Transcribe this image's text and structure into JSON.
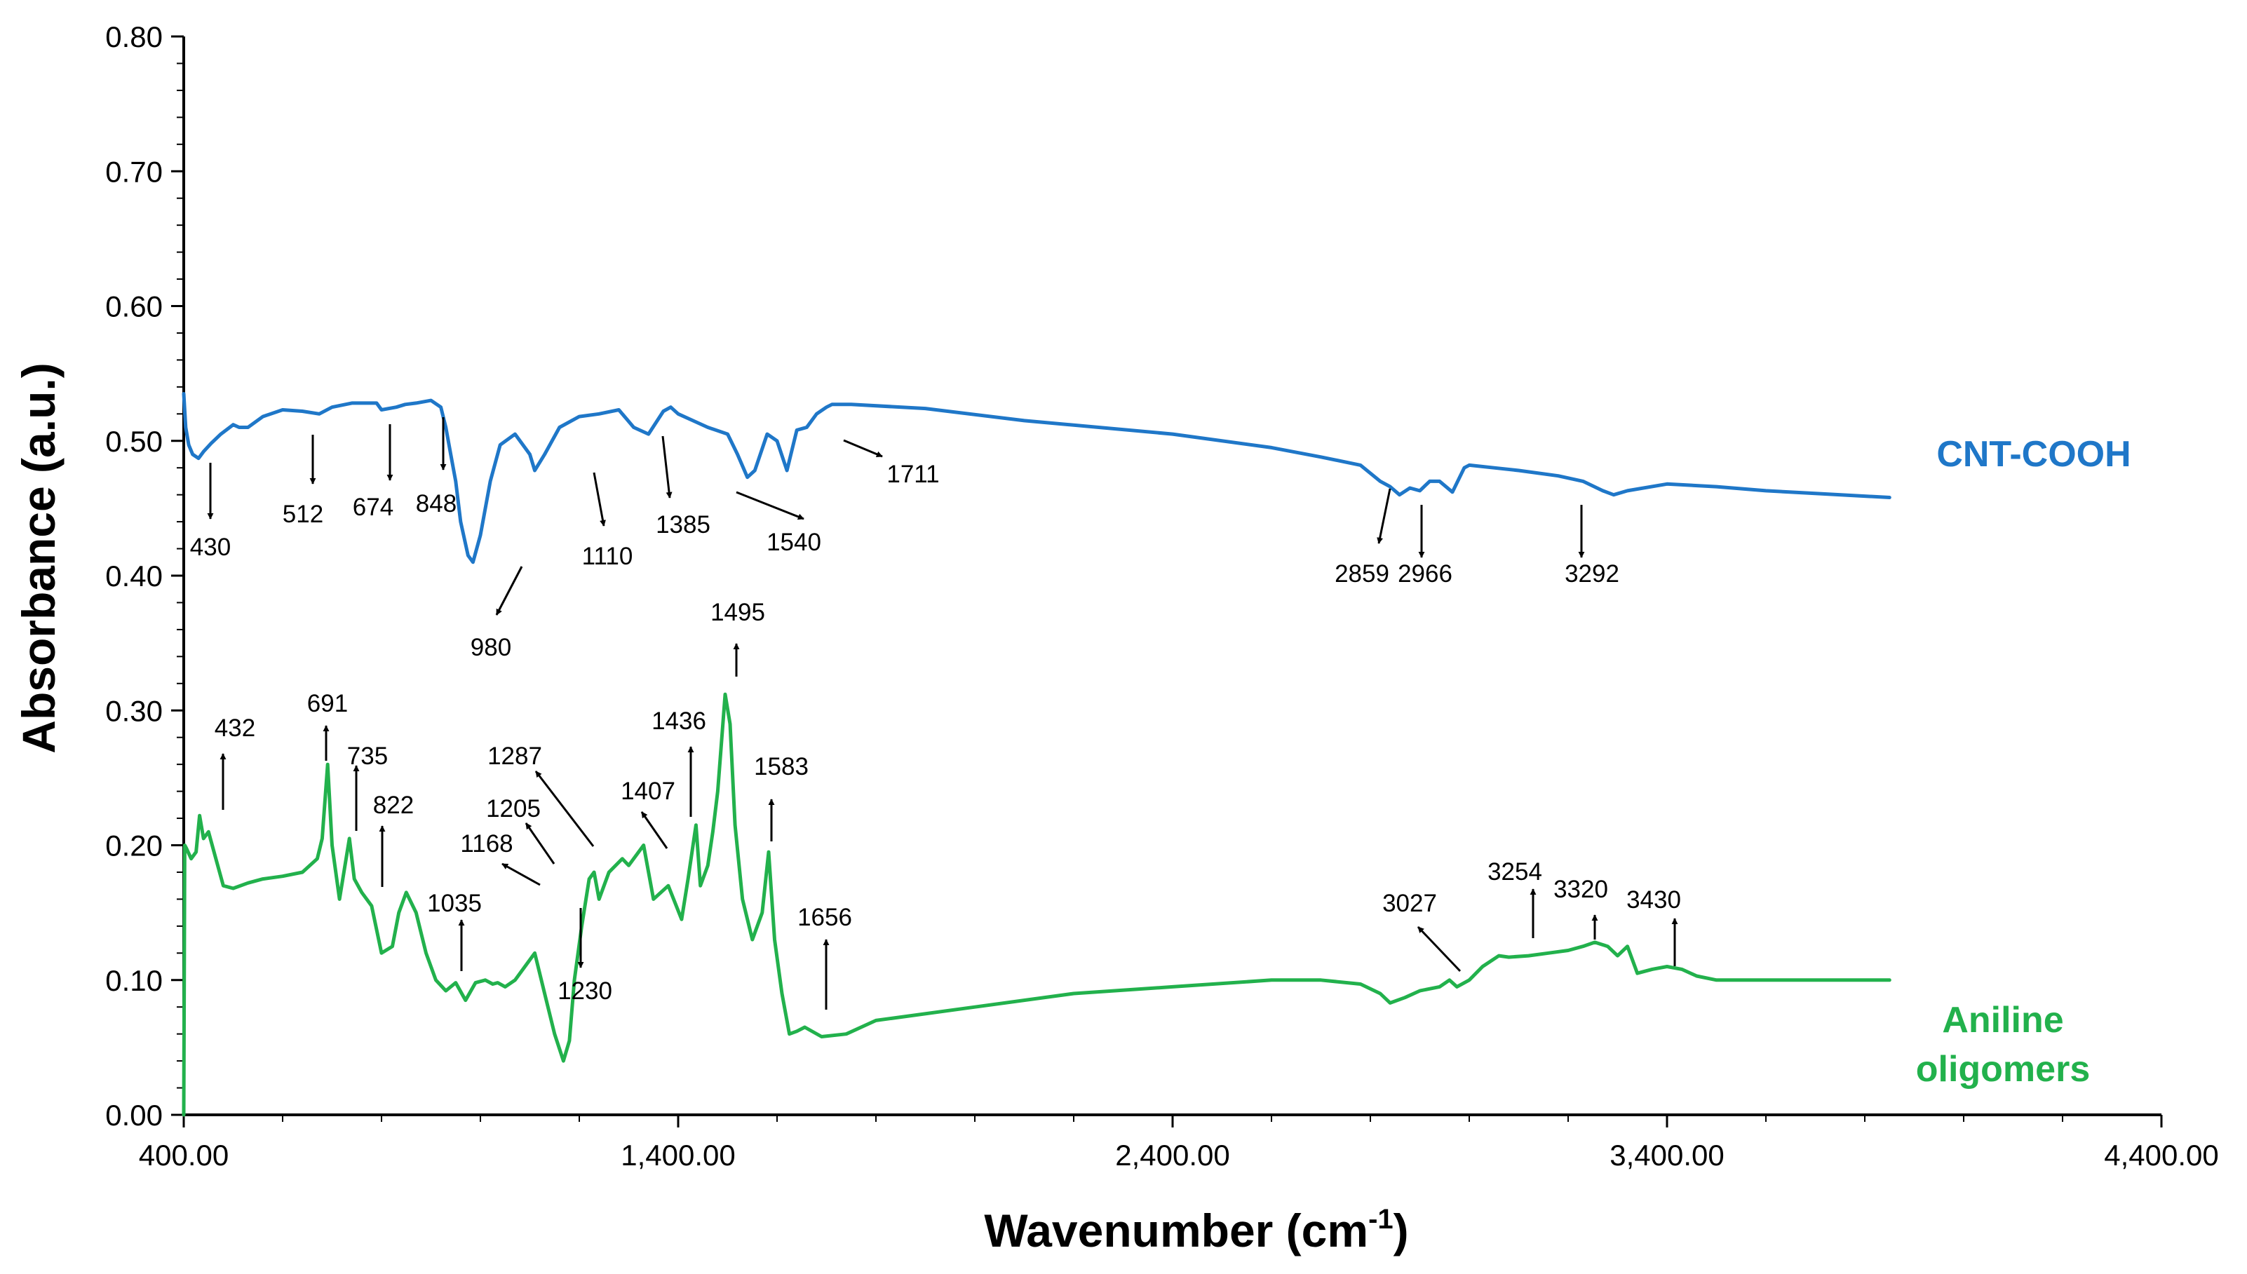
{
  "chart_data": {
    "type": "line",
    "title": "",
    "xlabel": "Wavenumber (cm",
    "xlabel_sup": "-1",
    "xlabel_close": ")",
    "ylabel": "Absorbance (a.u.)",
    "xlim": [
      400,
      4400
    ],
    "ylim": [
      0,
      0.8
    ],
    "x_ticks": [
      400,
      1400,
      2400,
      3400,
      4400
    ],
    "x_tick_labels": [
      "400.00",
      "1,400.00",
      "2,400.00",
      "3,400.00",
      "4,400.00"
    ],
    "y_ticks": [
      0,
      0.1,
      0.2,
      0.3,
      0.4,
      0.5,
      0.6,
      0.7,
      0.8
    ],
    "y_tick_labels": [
      "0.00",
      "0.10",
      "0.20",
      "0.30",
      "0.40",
      "0.50",
      "0.60",
      "0.70",
      "0.80"
    ],
    "grid": false,
    "series": [
      {
        "name": "CNT-COOH",
        "label_lines": [
          "CNT-COOH"
        ],
        "color": "#1f77c8",
        "x": [
          400,
          404,
          410,
          418,
          430,
          440,
          455,
          475,
          500,
          512,
          530,
          560,
          600,
          640,
          674,
          700,
          740,
          790,
          800,
          830,
          848,
          870,
          900,
          920,
          930,
          940,
          950,
          960,
          975,
          985,
          1000,
          1020,
          1040,
          1070,
          1100,
          1110,
          1130,
          1160,
          1200,
          1240,
          1280,
          1310,
          1340,
          1370,
          1385,
          1400,
          1430,
          1460,
          1500,
          1520,
          1540,
          1555,
          1580,
          1600,
          1620,
          1640,
          1660,
          1680,
          1700,
          1711,
          1750,
          1900,
          2100,
          2400,
          2600,
          2700,
          2780,
          2820,
          2840,
          2859,
          2880,
          2900,
          2920,
          2940,
          2966,
          2990,
          3000,
          3050,
          3100,
          3180,
          3230,
          3270,
          3292,
          3320,
          3400,
          3500,
          3600,
          3700,
          3800,
          3850
        ],
        "values": [
          0.535,
          0.51,
          0.497,
          0.49,
          0.487,
          0.492,
          0.498,
          0.505,
          0.512,
          0.51,
          0.51,
          0.518,
          0.523,
          0.522,
          0.52,
          0.525,
          0.528,
          0.528,
          0.523,
          0.525,
          0.527,
          0.528,
          0.53,
          0.525,
          0.51,
          0.49,
          0.47,
          0.44,
          0.415,
          0.41,
          0.43,
          0.47,
          0.497,
          0.505,
          0.49,
          0.478,
          0.49,
          0.51,
          0.518,
          0.52,
          0.523,
          0.51,
          0.505,
          0.522,
          0.525,
          0.52,
          0.515,
          0.51,
          0.505,
          0.49,
          0.473,
          0.478,
          0.505,
          0.5,
          0.478,
          0.508,
          0.51,
          0.52,
          0.525,
          0.527,
          0.527,
          0.524,
          0.515,
          0.505,
          0.495,
          0.488,
          0.482,
          0.47,
          0.466,
          0.46,
          0.465,
          0.463,
          0.47,
          0.47,
          0.462,
          0.48,
          0.482,
          0.48,
          0.478,
          0.474,
          0.47,
          0.463,
          0.46,
          0.463,
          0.468,
          0.466,
          0.463,
          0.461,
          0.459,
          0.458
        ],
        "annotations": [
          {
            "label": "430",
            "peak_x": 430
          },
          {
            "label": "512",
            "peak_x": 512
          },
          {
            "label": "674",
            "peak_x": 674
          },
          {
            "label": "848",
            "peak_x": 848
          },
          {
            "label": "980",
            "peak_x": 980
          },
          {
            "label": "1110",
            "peak_x": 1110
          },
          {
            "label": "1385",
            "peak_x": 1385
          },
          {
            "label": "1540",
            "peak_x": 1540
          },
          {
            "label": "1711",
            "peak_x": 1711
          },
          {
            "label": "2859",
            "peak_x": 2859
          },
          {
            "label": "2966",
            "peak_x": 2966
          },
          {
            "label": "3292",
            "peak_x": 3292
          }
        ]
      },
      {
        "name": "Aniline oligomers",
        "label_lines": [
          "Aniline",
          "oligomers"
        ],
        "color": "#22b14c",
        "x": [
          400,
          402,
          405,
          415,
          425,
          432,
          440,
          450,
          465,
          480,
          500,
          530,
          560,
          600,
          640,
          670,
          680,
          691,
          700,
          715,
          735,
          745,
          760,
          780,
          800,
          822,
          835,
          850,
          870,
          890,
          910,
          930,
          950,
          970,
          990,
          1010,
          1025,
          1035,
          1050,
          1070,
          1090,
          1110,
          1130,
          1150,
          1168,
          1180,
          1190,
          1205,
          1220,
          1230,
          1240,
          1260,
          1287,
          1300,
          1330,
          1350,
          1380,
          1407,
          1420,
          1436,
          1445,
          1460,
          1470,
          1480,
          1495,
          1505,
          1515,
          1530,
          1550,
          1570,
          1583,
          1595,
          1610,
          1625,
          1640,
          1656,
          1690,
          1740,
          1800,
          2000,
          2200,
          2400,
          2600,
          2700,
          2780,
          2820,
          2840,
          2870,
          2900,
          2940,
          2960,
          2975,
          3000,
          3027,
          3060,
          3080,
          3120,
          3160,
          3200,
          3230,
          3254,
          3280,
          3300,
          3320,
          3340,
          3370,
          3400,
          3430,
          3460,
          3500,
          3600,
          3700,
          3800,
          3850
        ],
        "values": [
          0.0,
          0.2,
          0.198,
          0.19,
          0.195,
          0.222,
          0.205,
          0.21,
          0.19,
          0.17,
          0.168,
          0.172,
          0.175,
          0.177,
          0.18,
          0.19,
          0.205,
          0.26,
          0.2,
          0.16,
          0.205,
          0.175,
          0.165,
          0.155,
          0.12,
          0.125,
          0.15,
          0.165,
          0.15,
          0.12,
          0.1,
          0.092,
          0.098,
          0.085,
          0.098,
          0.1,
          0.097,
          0.098,
          0.095,
          0.1,
          0.11,
          0.12,
          0.09,
          0.06,
          0.04,
          0.055,
          0.1,
          0.14,
          0.175,
          0.18,
          0.16,
          0.18,
          0.19,
          0.185,
          0.2,
          0.16,
          0.17,
          0.145,
          0.175,
          0.215,
          0.17,
          0.185,
          0.21,
          0.24,
          0.312,
          0.29,
          0.215,
          0.16,
          0.13,
          0.15,
          0.195,
          0.13,
          0.09,
          0.06,
          0.062,
          0.065,
          0.058,
          0.06,
          0.07,
          0.08,
          0.09,
          0.095,
          0.1,
          0.1,
          0.097,
          0.09,
          0.083,
          0.087,
          0.092,
          0.095,
          0.1,
          0.095,
          0.1,
          0.11,
          0.118,
          0.117,
          0.118,
          0.12,
          0.122,
          0.125,
          0.128,
          0.125,
          0.118,
          0.125,
          0.105,
          0.108,
          0.11,
          0.108,
          0.103,
          0.1,
          0.1,
          0.1,
          0.1,
          0.1
        ],
        "annotations": [
          {
            "label": "432",
            "peak_x": 432
          },
          {
            "label": "691",
            "peak_x": 691
          },
          {
            "label": "735",
            "peak_x": 735
          },
          {
            "label": "822",
            "peak_x": 822
          },
          {
            "label": "1035",
            "peak_x": 1035
          },
          {
            "label": "1168",
            "peak_x": 1168
          },
          {
            "label": "1205",
            "peak_x": 1205
          },
          {
            "label": "1230",
            "peak_x": 1230
          },
          {
            "label": "1287",
            "peak_x": 1287
          },
          {
            "label": "1407",
            "peak_x": 1407
          },
          {
            "label": "1436",
            "peak_x": 1436
          },
          {
            "label": "1495",
            "peak_x": 1495
          },
          {
            "label": "1583",
            "peak_x": 1583
          },
          {
            "label": "1656",
            "peak_x": 1656
          },
          {
            "label": "3027",
            "peak_x": 3027
          },
          {
            "label": "3254",
            "peak_x": 3254
          },
          {
            "label": "3320",
            "peak_x": 3320
          },
          {
            "label": "3430",
            "peak_x": 3430
          }
        ]
      }
    ]
  }
}
